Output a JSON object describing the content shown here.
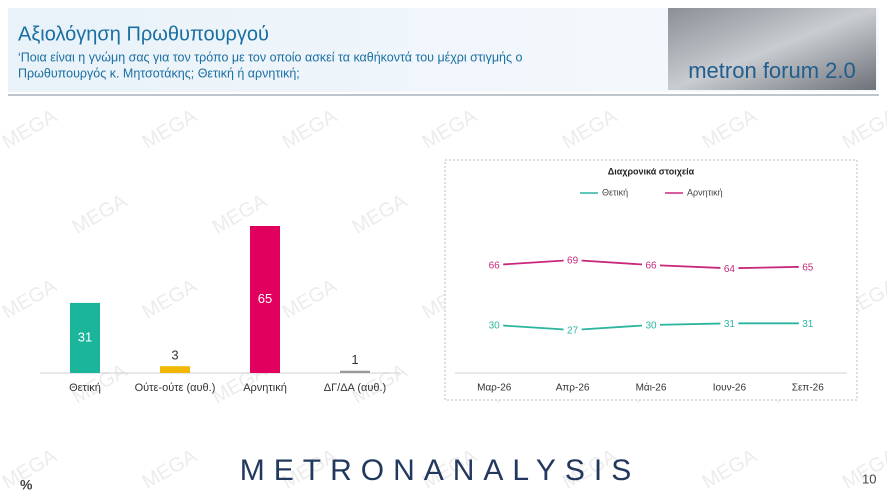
{
  "header": {
    "title": "Αξιολόγηση Πρωθυπουργού",
    "subtitle": [
      "‘Ποια είναι η γνώμη σας για τον τρόπο με τον οποίο ασκεί τα καθήκοντά του μέχρι στιγμής ο",
      "Πρωθυπουργός κ. Μητσοτάκης; Θετική ή αρνητική;"
    ],
    "logo": "metron forum 2.0"
  },
  "watermark": "MEGA",
  "footer": {
    "brand": "METRONANALYSIS",
    "page": "10",
    "unit": "%"
  },
  "chart_data": [
    {
      "type": "bar",
      "categories": [
        "Θετική",
        "Ούτε-ούτε (αυθ.)",
        "Αρνητική",
        "ΔΓ/ΔΑ (αυθ.)"
      ],
      "values": [
        31,
        3,
        65,
        1
      ],
      "colors": [
        "#1bb59c",
        "#f2b705",
        "#e2005f",
        "#9a9a9a"
      ]
    },
    {
      "type": "line",
      "title": "Διαχρονικά στοιχεία",
      "categories": [
        "Μαρ-26",
        "Απρ-26",
        "Μάι-26",
        "Ιουν-26",
        "Σεπ-26"
      ],
      "series": [
        {
          "name": "Θετική",
          "color": "#2bb5a0",
          "values": [
            30,
            27,
            30,
            31,
            31
          ]
        },
        {
          "name": "Αρνητική",
          "color": "#c8287c",
          "values": [
            66,
            69,
            66,
            64,
            65
          ]
        }
      ]
    }
  ]
}
